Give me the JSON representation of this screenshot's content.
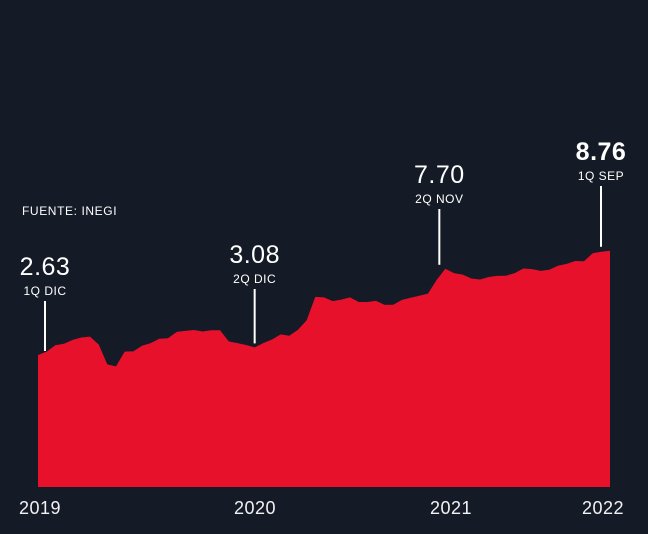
{
  "colors": {
    "background": "#151b26",
    "area": "#e8112c",
    "text": "#ffffff",
    "axis_text": "#f2f2f4"
  },
  "source": "FUENTE: INEGI",
  "chart_data": {
    "type": "area",
    "title": "",
    "x_ticks": [
      "2019",
      "2020",
      "2021",
      "2022"
    ],
    "frequency": "biweekly",
    "start": "1Q DIC 2019",
    "end": "1Q SEP 2022",
    "ylim": [
      0,
      9
    ],
    "values": [
      2.63,
      2.83,
      3.2,
      3.29,
      3.52,
      3.66,
      3.71,
      3.25,
      2.08,
      1.96,
      2.83,
      2.84,
      3.17,
      3.33,
      3.59,
      3.62,
      3.99,
      4.05,
      4.1,
      4.01,
      4.09,
      4.09,
      3.43,
      3.33,
      3.22,
      3.08,
      3.33,
      3.54,
      3.84,
      3.76,
      4.12,
      4.67,
      6.05,
      6.02,
      5.8,
      5.89,
      6.02,
      5.75,
      5.75,
      5.81,
      5.58,
      5.59,
      5.87,
      6.0,
      6.12,
      6.24,
      7.05,
      7.7,
      7.45,
      7.36,
      7.13,
      7.07,
      7.22,
      7.28,
      7.29,
      7.45,
      7.72,
      7.68,
      7.58,
      7.65,
      7.88,
      7.99,
      8.16,
      8.15,
      8.62,
      8.7,
      8.76
    ],
    "annotations": [
      {
        "value": "2.63",
        "label": "1Q DIC",
        "point_index": 0,
        "emphasis": false
      },
      {
        "value": "3.08",
        "label": "2Q DIC",
        "point_index": 25,
        "emphasis": false
      },
      {
        "value": "7.70",
        "label": "2Q NOV",
        "point_index": 47,
        "emphasis": false
      },
      {
        "value": "8.76",
        "label": "1Q SEP",
        "point_index": 66,
        "emphasis": true
      }
    ]
  }
}
